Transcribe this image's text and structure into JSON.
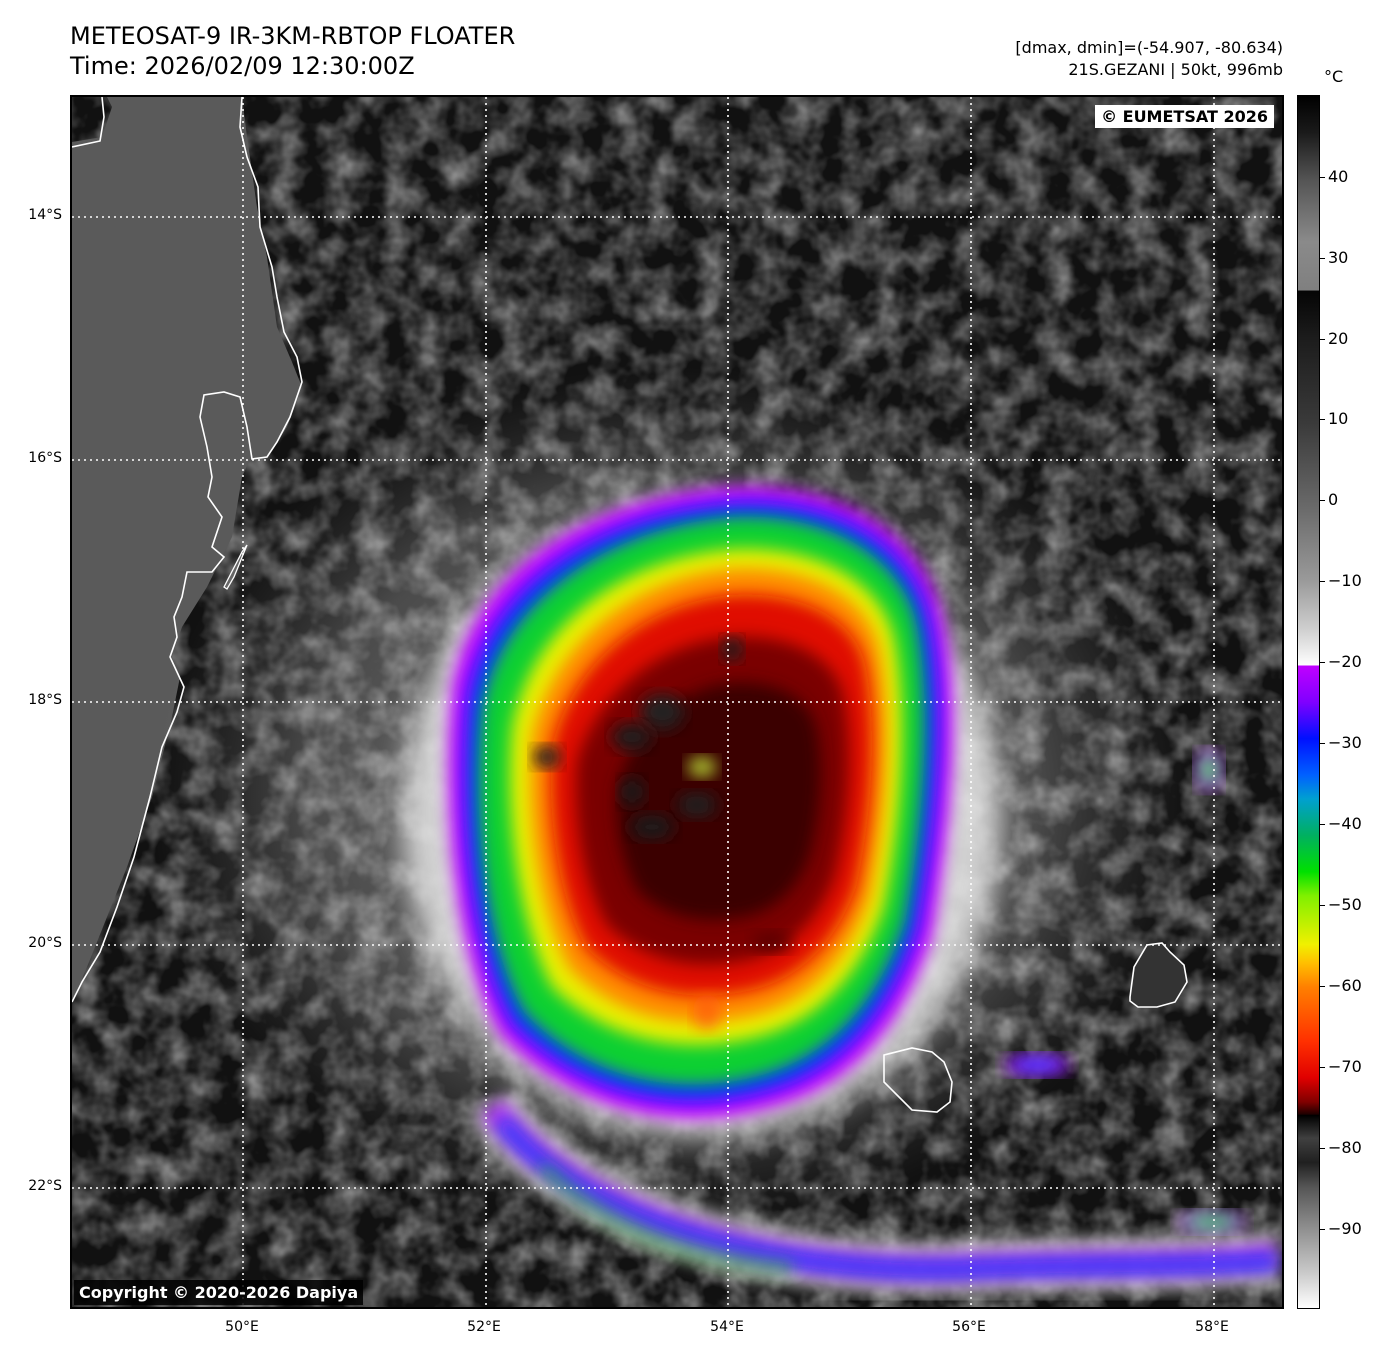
{
  "header": {
    "title_line1": "METEOSAT-9 IR-3KM-RBTOP FLOATER",
    "title_line2": "Time: 2026/02/09 12:30:00Z",
    "meta_line1": "[dmax, dmin]=(-54.907, -80.634)",
    "meta_line2": "21S.GEZANI | 50kt, 996mb"
  },
  "map": {
    "credit_top_right": "© EUMETSAT 2026",
    "credit_bottom_left": "Copyright © 2020-2026 Dapiya",
    "lat_labels": [
      "14°S",
      "16°S",
      "18°S",
      "20°S",
      "22°S"
    ],
    "lon_labels": [
      "50°E",
      "52°E",
      "54°E",
      "56°E",
      "58°E"
    ],
    "storm": "21S.GEZANI",
    "intensity_kt": 50,
    "pressure_mb": 996,
    "dmax": -54.907,
    "dmin": -80.634
  },
  "colorbar": {
    "unit": "°C",
    "tick_labels": [
      "40",
      "30",
      "20",
      "10",
      "0",
      "−10",
      "−20",
      "−30",
      "−40",
      "−50",
      "−60",
      "−70",
      "−80",
      "−90"
    ],
    "colors": {
      "warm_top": "#111111",
      "gray_warm": "#888888",
      "white": "#ffffff",
      "magenta": "#e000ff",
      "blue": "#0030ff",
      "cyan": "#00a0d0",
      "green": "#00d000",
      "yellow": "#f0f000",
      "orange": "#ff7000",
      "red": "#e00000",
      "dark_red": "#300000",
      "cold_gray": "#202020"
    }
  }
}
